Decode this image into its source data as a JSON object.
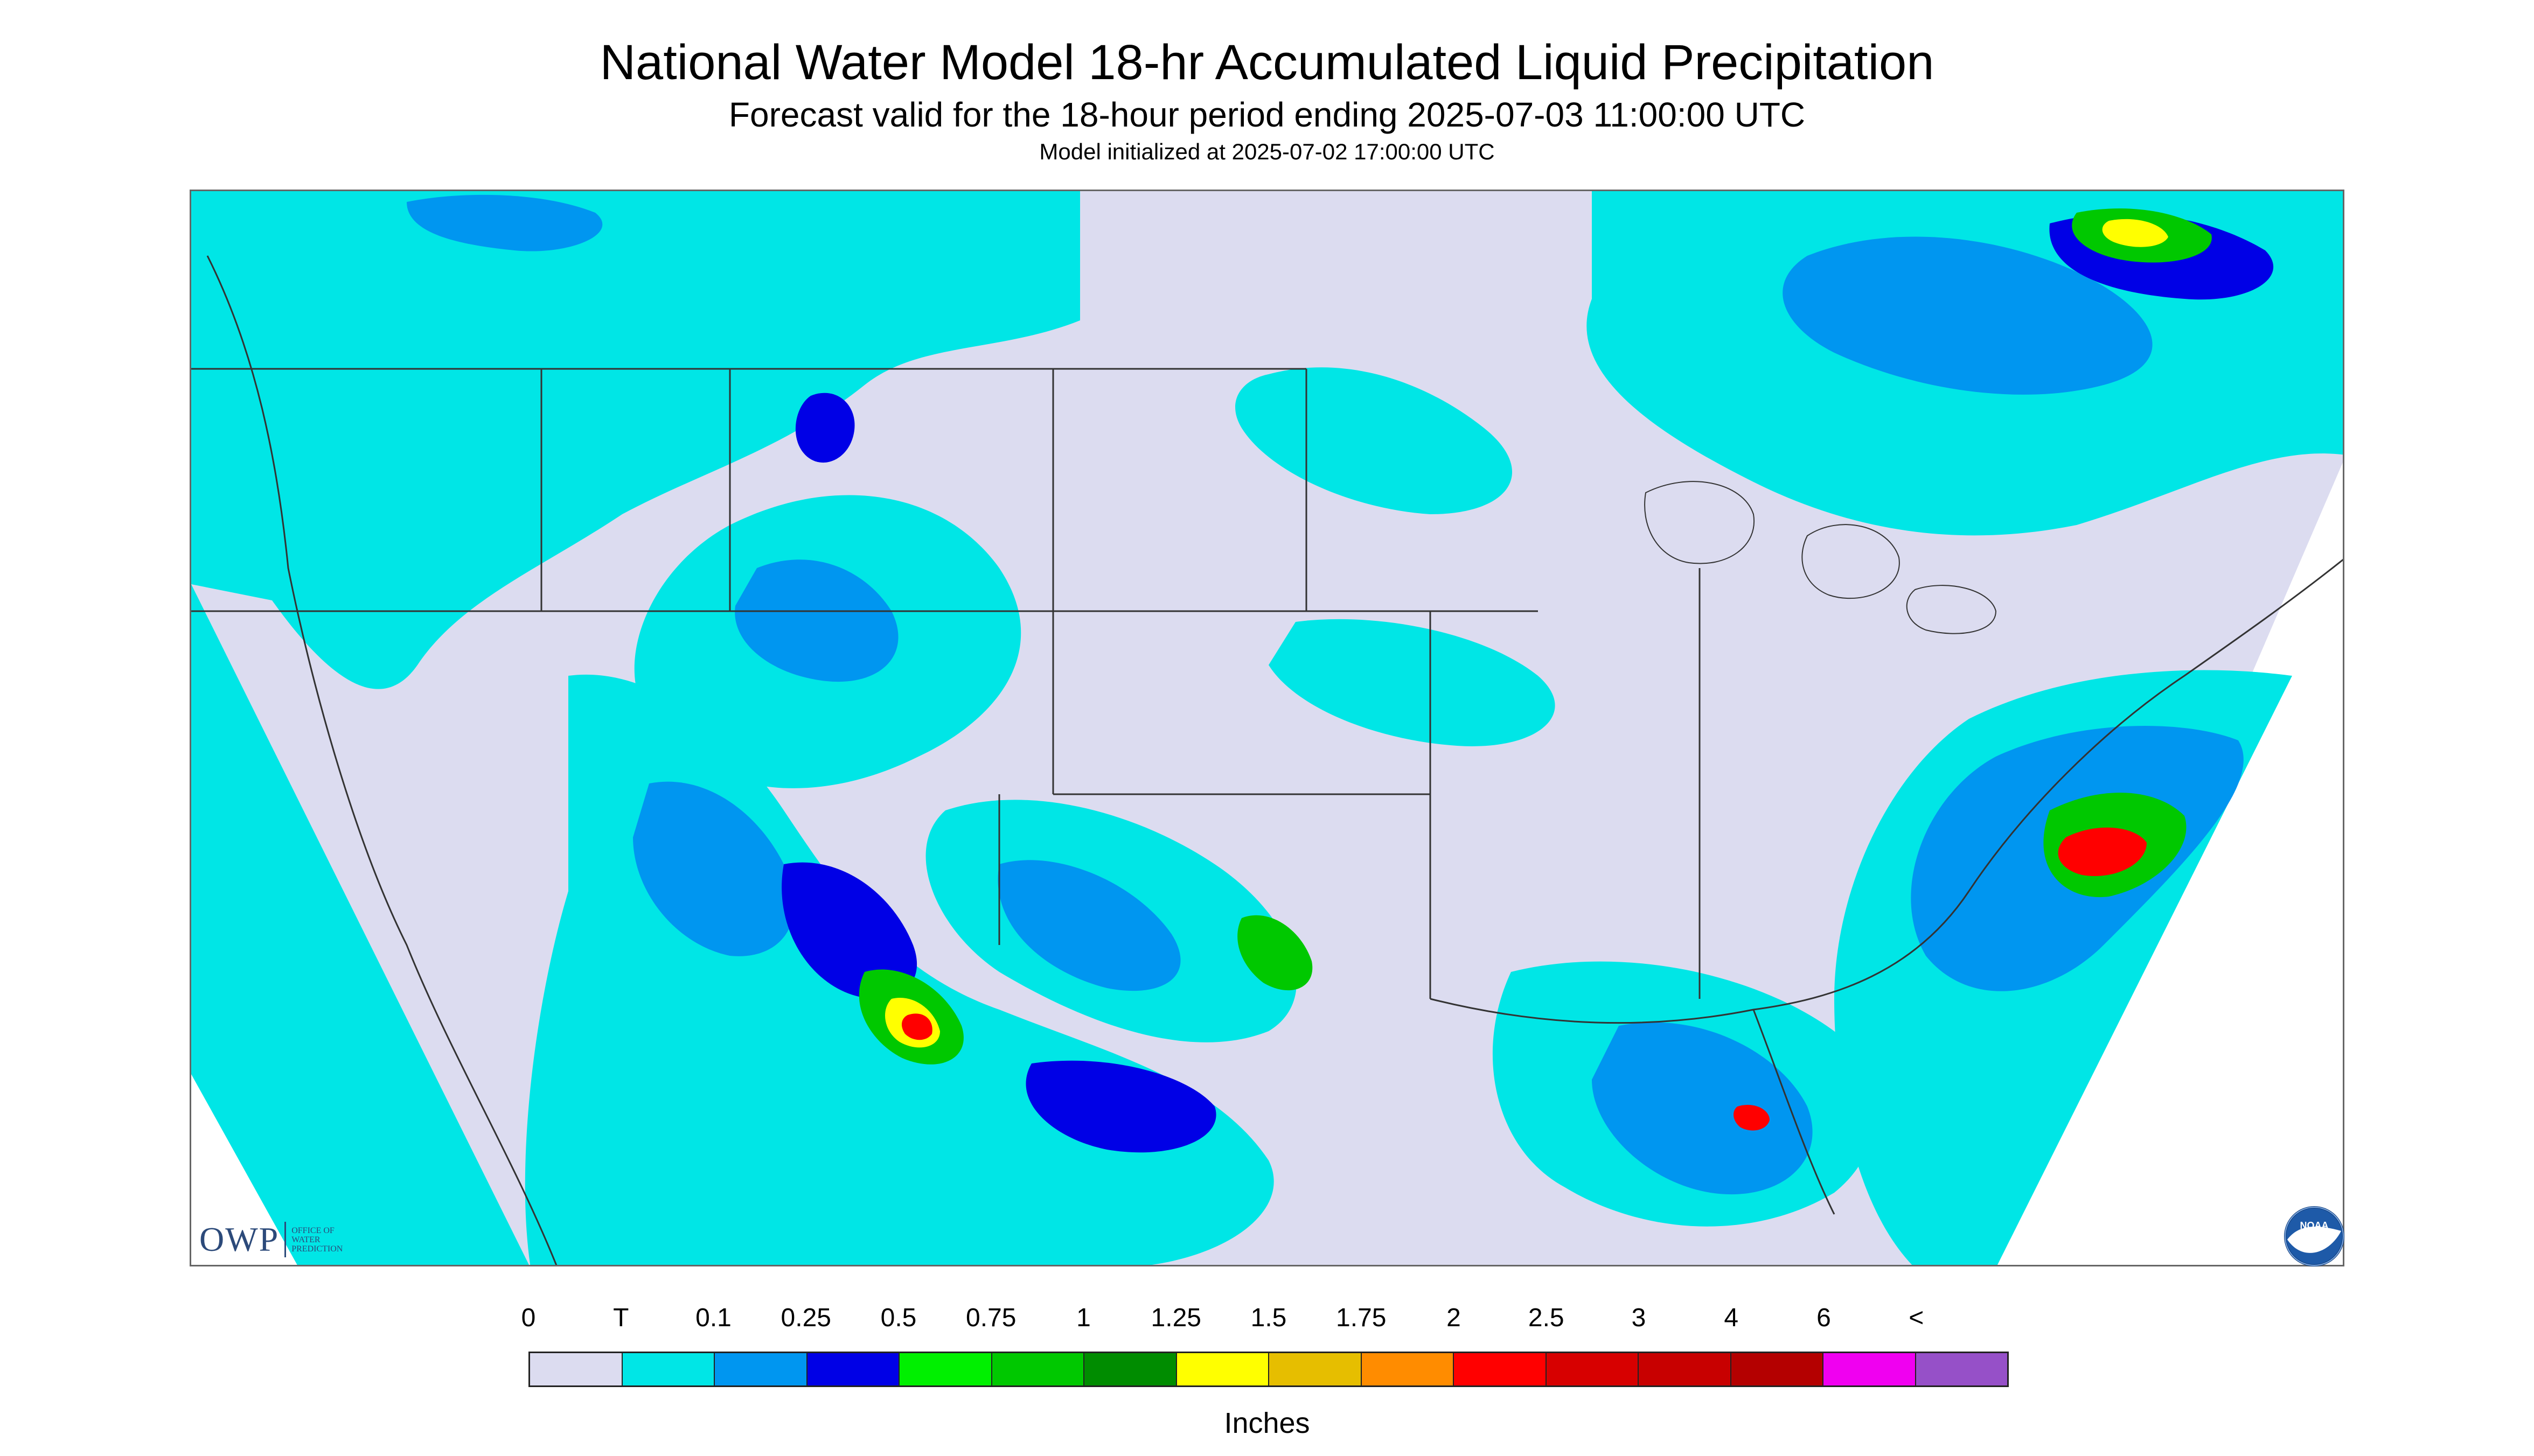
{
  "header": {
    "title": "National Water Model 18-hr Accumulated Liquid Precipitation",
    "subtitle": "Forecast valid for the 18-hour period ending 2025-07-03 11:00:00 UTC",
    "init": "Model initialized at 2025-07-02 17:00:00 UTC"
  },
  "logos": {
    "owp": {
      "text": "OWP",
      "sub": [
        "OFFICE OF",
        "WATER",
        "PREDICTION"
      ]
    },
    "noaa": {
      "text": "NOAA"
    }
  },
  "legend": {
    "labels": [
      "0",
      "T",
      "0.1",
      "0.25",
      "0.5",
      "0.75",
      "1",
      "1.25",
      "1.5",
      "1.75",
      "2",
      "2.5",
      "3",
      "4",
      "6",
      "<"
    ],
    "colors": [
      "#dcdcf0",
      "#00e6e6",
      "#0096f0",
      "#0000e6",
      "#00f000",
      "#00c800",
      "#008c00",
      "#ffff00",
      "#e6be00",
      "#ff8c00",
      "#ff0000",
      "#d70000",
      "#c80000",
      "#b40000",
      "#f000f0",
      "#9650c8"
    ],
    "units": "Inches"
  },
  "palette": {
    "no_data": "#ffffff",
    "zero": "#dcdcf0",
    "trace": "#00e6e6",
    "light": "#0096f0",
    "moderate": "#0000e6",
    "green": "#00c800",
    "yellow": "#ffff00",
    "red": "#ff0000",
    "boundary": "#333333"
  }
}
